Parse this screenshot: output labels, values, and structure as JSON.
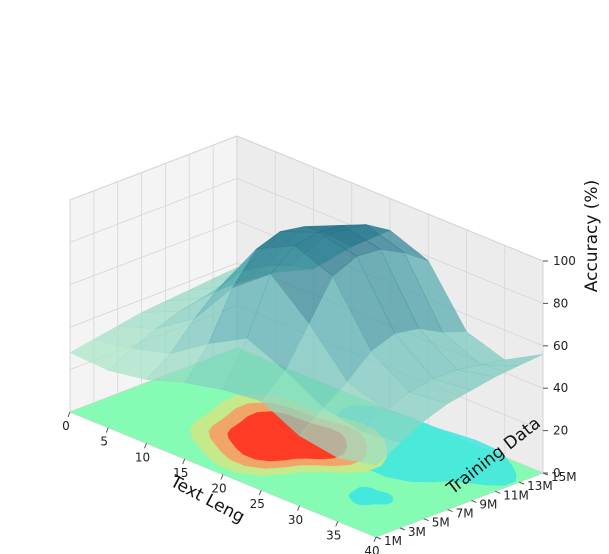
{
  "chart_data": {
    "type": "surface3d",
    "xlabel": "Text Leng",
    "ylabel": "Training Data",
    "zlabel": "Accuracy (%)",
    "xticks": [
      "0",
      "5",
      "10",
      "15",
      "20",
      "25",
      "30",
      "35",
      "40"
    ],
    "yticks": [
      "1M",
      "3M",
      "5M",
      "7M",
      "9M",
      "11M",
      "13M",
      "15M"
    ],
    "zticks": [
      "0",
      "20",
      "40",
      "60",
      "80",
      "100"
    ],
    "xlim": [
      0,
      40
    ],
    "ylim": [
      1,
      15
    ],
    "zlim": [
      0,
      100
    ],
    "surface_colormap": [
      "#1c6d86",
      "#5fb8b8",
      "#a9e6c8"
    ],
    "contour_colors": [
      "#7ffcb0",
      "#3ee6e0",
      "#c8e98a",
      "#f4a167",
      "#fe3c25"
    ],
    "series": [
      {
        "x": [
          0,
          5,
          10,
          15,
          20,
          25,
          30,
          35,
          40
        ],
        "rows": [
          {
            "y": 1,
            "z": [
              28,
              27,
              30,
              36,
              40,
              42,
              33,
              30,
              34
            ]
          },
          {
            "y": 3,
            "z": [
              30,
              33,
              38,
              50,
              60,
              52,
              42,
              38,
              40
            ]
          },
          {
            "y": 5,
            "z": [
              32,
              38,
              50,
              72,
              86,
              70,
              50,
              44,
              46
            ]
          },
          {
            "y": 7,
            "z": [
              34,
              42,
              60,
              86,
              95,
              88,
              60,
              48,
              50
            ]
          },
          {
            "y": 9,
            "z": [
              35,
              44,
              64,
              90,
              97,
              93,
              64,
              50,
              52
            ]
          },
          {
            "y": 11,
            "z": [
              36,
              45,
              62,
              88,
              96,
              92,
              62,
              50,
              54
            ]
          },
          {
            "y": 13,
            "z": [
              37,
              44,
              58,
              80,
              92,
              86,
              56,
              48,
              55
            ]
          },
          {
            "y": 15,
            "z": [
              38,
              43,
              52,
              70,
              85,
              78,
              52,
              46,
              56
            ]
          }
        ]
      }
    ]
  }
}
